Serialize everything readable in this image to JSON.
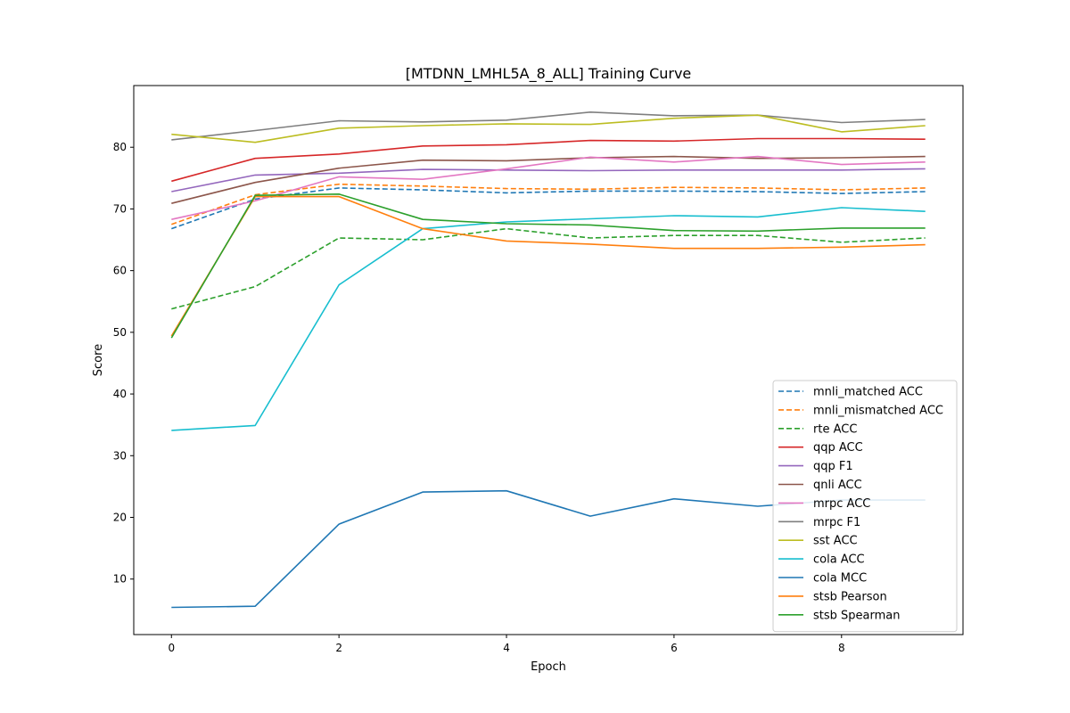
{
  "chart_data": {
    "type": "line",
    "title": "[MTDNN_LMHL5A_8_ALL] Training Curve",
    "xlabel": "Epoch",
    "ylabel": "Score",
    "x": [
      0,
      1,
      2,
      3,
      4,
      5,
      6,
      7,
      8,
      9
    ],
    "xlim": [
      -0.45,
      9.45
    ],
    "ylim": [
      1.0,
      90.0
    ],
    "xticks": [
      0,
      2,
      4,
      6,
      8
    ],
    "yticks": [
      10,
      20,
      30,
      40,
      50,
      60,
      70,
      80
    ],
    "grid": false,
    "legend_position": "lower right",
    "series": [
      {
        "name": "mnli_matched ACC",
        "color": "#1f77b4",
        "dashed": true,
        "values": [
          66.8,
          71.6,
          73.4,
          73.1,
          72.6,
          72.9,
          72.9,
          72.8,
          72.5,
          72.8
        ]
      },
      {
        "name": "mnli_mismatched ACC",
        "color": "#ff7f0e",
        "dashed": true,
        "values": [
          67.5,
          72.3,
          74.0,
          73.7,
          73.3,
          73.2,
          73.5,
          73.4,
          73.1,
          73.4
        ]
      },
      {
        "name": "rte ACC",
        "color": "#2ca02c",
        "dashed": true,
        "values": [
          53.8,
          57.4,
          65.3,
          65.0,
          66.8,
          65.3,
          65.7,
          65.7,
          64.6,
          65.3
        ]
      },
      {
        "name": "qqp ACC",
        "color": "#d62728",
        "dashed": false,
        "values": [
          74.5,
          78.2,
          78.9,
          80.2,
          80.4,
          81.1,
          81.0,
          81.4,
          81.4,
          81.3
        ]
      },
      {
        "name": "qqp F1",
        "color": "#9467bd",
        "dashed": false,
        "values": [
          72.8,
          75.5,
          75.8,
          76.4,
          76.3,
          76.2,
          76.3,
          76.3,
          76.3,
          76.5
        ]
      },
      {
        "name": "qnli ACC",
        "color": "#8c564b",
        "dashed": false,
        "values": [
          70.9,
          74.3,
          76.6,
          77.9,
          77.8,
          78.3,
          78.5,
          78.2,
          78.3,
          78.5
        ]
      },
      {
        "name": "mrpc ACC",
        "color": "#e377c2",
        "dashed": false,
        "values": [
          68.3,
          71.3,
          75.2,
          74.8,
          76.5,
          78.4,
          77.6,
          78.5,
          77.2,
          77.6
        ]
      },
      {
        "name": "mrpc F1",
        "color": "#7f7f7f",
        "dashed": false,
        "values": [
          81.2,
          82.7,
          84.3,
          84.1,
          84.4,
          85.7,
          85.1,
          85.2,
          84.0,
          84.5
        ]
      },
      {
        "name": "sst ACC",
        "color": "#bcbd22",
        "dashed": false,
        "values": [
          82.1,
          80.8,
          83.1,
          83.5,
          83.8,
          83.7,
          84.7,
          85.2,
          82.5,
          83.5
        ]
      },
      {
        "name": "cola ACC",
        "color": "#17becf",
        "dashed": false,
        "values": [
          34.1,
          34.9,
          57.7,
          66.8,
          67.9,
          68.4,
          68.9,
          68.7,
          70.2,
          69.6
        ]
      },
      {
        "name": "cola MCC",
        "color": "#1f77b4",
        "dashed": false,
        "values": [
          5.4,
          5.6,
          18.9,
          24.1,
          24.3,
          20.2,
          23.0,
          21.8,
          22.8,
          22.8
        ]
      },
      {
        "name": "stsb Pearson",
        "color": "#ff7f0e",
        "dashed": false,
        "values": [
          49.4,
          72.0,
          72.0,
          66.8,
          64.8,
          64.3,
          63.6,
          63.6,
          63.8,
          64.2
        ]
      },
      {
        "name": "stsb Spearman",
        "color": "#2ca02c",
        "dashed": false,
        "values": [
          49.1,
          72.2,
          72.4,
          68.3,
          67.6,
          67.4,
          66.5,
          66.4,
          66.9,
          66.9
        ]
      }
    ]
  }
}
